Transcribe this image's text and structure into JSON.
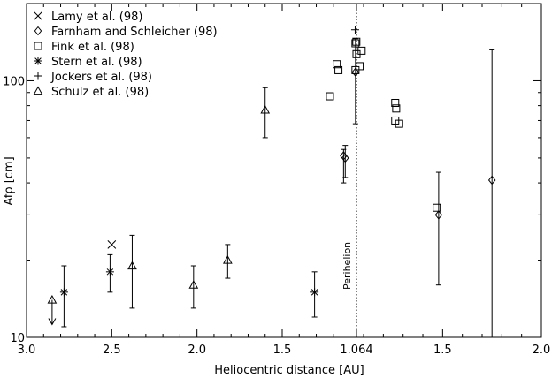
{
  "chart_data": {
    "type": "scatter",
    "title": "",
    "xlabel": "Heliocentric distance [AU]",
    "ylabel": "Afρ [cm]",
    "yscale": "log",
    "ylim": [
      10,
      200
    ],
    "x_axis": {
      "note": "split axis: pre-perihelion (left) and post-perihelion (right) of r=1.064 AU",
      "pre_range": [
        3.0,
        1.064
      ],
      "post_range": [
        1.064,
        2.0
      ],
      "ticks_pre": [
        "3.0",
        "2.5",
        "2.0",
        "1.5"
      ],
      "ticks_post": [
        "1.5",
        "2.0"
      ],
      "perihelion_label": "1.064"
    },
    "perihelion_annotation": "Perihelion",
    "grid": false,
    "legend_position": "top-left",
    "series": [
      {
        "name": "Lamy et al. (98)",
        "marker": "x",
        "points": [
          {
            "r": 2.5,
            "branch": "pre",
            "y": 23
          }
        ]
      },
      {
        "name": "Farnham and Schleicher (98)",
        "marker": "diamond",
        "points": [
          {
            "r": 1.14,
            "branch": "pre",
            "y": 51,
            "err_lo": 40,
            "err_hi": 54
          },
          {
            "r": 1.13,
            "branch": "pre",
            "y": 50,
            "err_lo": 42,
            "err_hi": 56
          },
          {
            "r": 1.07,
            "branch": "pre",
            "y": 108,
            "err_lo": 68,
            "err_hi": 146
          },
          {
            "r": 1.48,
            "branch": "post",
            "y": 30,
            "err_lo": 16,
            "err_hi": 44
          },
          {
            "r": 1.75,
            "branch": "post",
            "y": 41,
            "err_lo": 10,
            "err_hi": 132
          }
        ]
      },
      {
        "name": "Fink et al. (98)",
        "marker": "square",
        "points": [
          {
            "r": 1.22,
            "branch": "pre",
            "y": 87
          },
          {
            "r": 1.18,
            "branch": "pre",
            "y": 116
          },
          {
            "r": 1.17,
            "branch": "pre",
            "y": 110
          },
          {
            "r": 1.07,
            "branch": "pre",
            "y": 110
          },
          {
            "r": 1.07,
            "branch": "pre",
            "y": 140
          },
          {
            "r": 1.065,
            "branch": "pre",
            "y": 142
          },
          {
            "r": 1.064,
            "branch": "post",
            "y": 127
          },
          {
            "r": 1.08,
            "branch": "post",
            "y": 114
          },
          {
            "r": 1.09,
            "branch": "post",
            "y": 131
          },
          {
            "r": 1.26,
            "branch": "post",
            "y": 82
          },
          {
            "r": 1.265,
            "branch": "post",
            "y": 78
          },
          {
            "r": 1.26,
            "branch": "post",
            "y": 70
          },
          {
            "r": 1.28,
            "branch": "post",
            "y": 68
          },
          {
            "r": 1.47,
            "branch": "post",
            "y": 32
          }
        ]
      },
      {
        "name": "Stern et al. (98)",
        "marker": "asterisk",
        "points": [
          {
            "r": 2.78,
            "branch": "pre",
            "y": 15,
            "err_lo": 11,
            "err_hi": 19
          },
          {
            "r": 2.51,
            "branch": "pre",
            "y": 18,
            "err_lo": 15,
            "err_hi": 21
          },
          {
            "r": 1.31,
            "branch": "pre",
            "y": 15,
            "err_lo": 12,
            "err_hi": 18
          }
        ]
      },
      {
        "name": "Jockers et al. (98)",
        "marker": "plus",
        "points": [
          {
            "r": 1.072,
            "branch": "pre",
            "y": 158
          }
        ]
      },
      {
        "name": "Schulz et al. (98)",
        "marker": "triangle",
        "points": [
          {
            "r": 2.85,
            "branch": "pre",
            "y": 14,
            "upper_limit": true
          },
          {
            "r": 2.38,
            "branch": "pre",
            "y": 19,
            "err_lo": 13,
            "err_hi": 25
          },
          {
            "r": 2.02,
            "branch": "pre",
            "y": 16,
            "err_lo": 13,
            "err_hi": 19
          },
          {
            "r": 1.82,
            "branch": "pre",
            "y": 20,
            "err_lo": 17,
            "err_hi": 23
          },
          {
            "r": 1.6,
            "branch": "pre",
            "y": 77,
            "err_lo": 60,
            "err_hi": 94
          }
        ]
      }
    ]
  }
}
